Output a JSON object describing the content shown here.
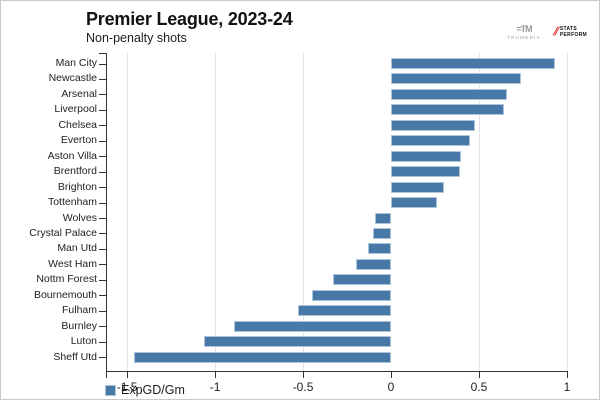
{
  "header": {
    "title": "Premier League, 2023-24",
    "subtitle": "Non-penalty shots",
    "logos": {
      "trumedia_mark": "=TM",
      "trumedia": "TRUMEDIA",
      "stats_perform_slashes": "⫽",
      "stats_perform_line1": "STATS",
      "stats_perform_line2": "PERFORM"
    }
  },
  "chart_data": {
    "type": "bar",
    "orientation": "horizontal",
    "title": "Premier League, 2023-24",
    "subtitle": "Non-penalty shots",
    "categories": [
      "Man City",
      "Newcastle",
      "Arsenal",
      "Liverpool",
      "Chelsea",
      "Everton",
      "Aston Villa",
      "Brentford",
      "Brighton",
      "Tottenham",
      "Wolves",
      "Crystal Palace",
      "Man Utd",
      "West Ham",
      "Nottm Forest",
      "Bournemouth",
      "Fulham",
      "Burnley",
      "Luton",
      "Sheff Utd"
    ],
    "series": [
      {
        "name": "ExpGD/Gm",
        "values": [
          0.93,
          0.74,
          0.66,
          0.64,
          0.48,
          0.45,
          0.4,
          0.39,
          0.3,
          0.26,
          -0.09,
          -0.1,
          -0.13,
          -0.2,
          -0.33,
          -0.45,
          -0.53,
          -0.89,
          -1.06,
          -1.46
        ]
      }
    ],
    "xlabel": "",
    "ylabel": "",
    "xlim": [
      -1.614,
      1.0
    ],
    "xticks": [
      -1.5,
      -1,
      -0.5,
      0,
      0.5,
      1
    ],
    "xtick_labels": [
      "-1.5",
      "-1",
      "-0.5",
      "0",
      "0.5",
      "1"
    ],
    "grid": true,
    "gridline_color": "#e4e4e4",
    "bar_color": "#4878a8",
    "bar_border_color": "#aec5d9",
    "legend_position": "bottom-left"
  },
  "legend": {
    "label": "ExpGD/Gm",
    "swatch_color": "#4878a8"
  }
}
